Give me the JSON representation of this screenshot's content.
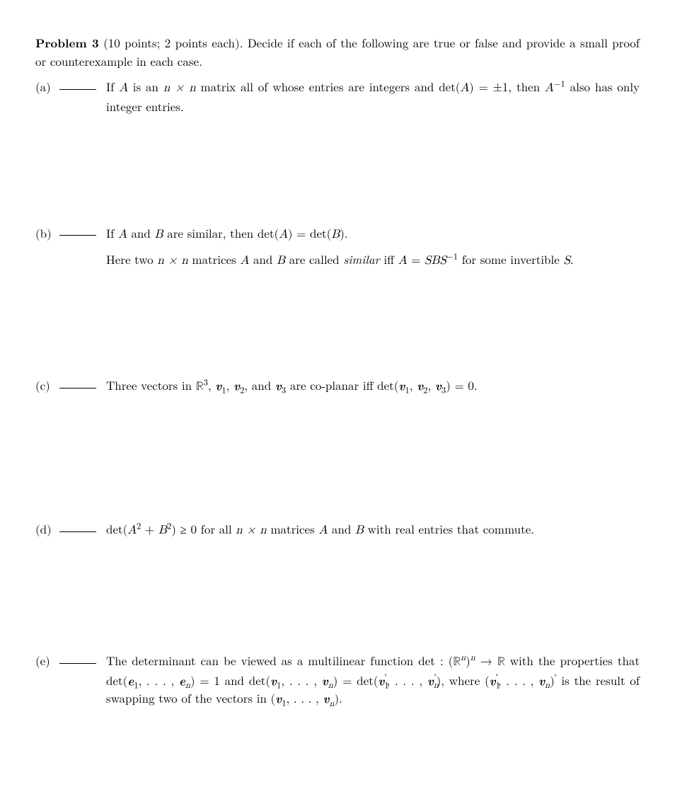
{
  "header": {
    "title": "Problem 3",
    "points": " (10 points; 2 points each).",
    "intro": " Decide if each of the following are true or false and provide a small proof or counterexample in each case."
  },
  "parts": {
    "a": {
      "label": "(a)",
      "pre1": "If ",
      "A": "A",
      "mid1": " is an ",
      "nxn": "n × n",
      "mid2": " matrix all of whose entries are integers and det(",
      "A2": "A",
      "mid3": ") = ±1, then ",
      "Ainv": "A",
      "invexp": "−1",
      "post": " also has only integer entries."
    },
    "b": {
      "label": "(b)",
      "p1_pre": "If ",
      "p1_A": "A",
      "p1_and": " and ",
      "p1_B": "B",
      "p1_mid": " are similar, then det(",
      "p1_A2": "A",
      "p1_mid2": ") = det(",
      "p1_B2": "B",
      "p1_end": ").",
      "p2_pre": "Here two ",
      "p2_nxn": "n × n",
      "p2_mid1": " matrices ",
      "p2_A": "A",
      "p2_and": " and ",
      "p2_B": "B",
      "p2_mid2": " are called ",
      "p2_sim": "similar",
      "p2_mid3": " iff ",
      "p2_A2": "A",
      "p2_eq": " = ",
      "p2_SBS": "SBS",
      "p2_inv": "−1",
      "p2_mid4": " for some invertible ",
      "p2_S": "S",
      "p2_end": "."
    },
    "c": {
      "label": "(c)",
      "pre": "Three vectors in ",
      "R": "ℝ",
      "exp3": "3",
      "mid1": ", ",
      "v1": "v",
      "s1": "1",
      "c1": ", ",
      "v2": "v",
      "s2": "2",
      "c2": ", and ",
      "v3": "v",
      "s3": "3",
      "mid2": " are co-planar iff det(",
      "dv1": "v",
      "ds1": "1",
      "dc1": ", ",
      "dv2": "v",
      "ds2": "2",
      "dc2": ", ",
      "dv3": "v",
      "ds3": "3",
      "end": ") = 0."
    },
    "d": {
      "label": "(d)",
      "pre": "det(",
      "A": "A",
      "sq1": "2",
      "plus": " + ",
      "B": "B",
      "sq2": "2",
      "mid1": ") ≥ 0 for all ",
      "nxn": "n × n",
      "mid2": " matrices ",
      "A2": "A",
      "and": " and ",
      "B2": "B",
      "end": " with real entries that commute."
    },
    "e": {
      "label": "(e)",
      "pre": "The determinant can be viewed as a multilinear function det : (",
      "R": "ℝ",
      "expn": "n",
      "paren": ")",
      "expn2": "n",
      "arrow": " → ",
      "R2": "ℝ",
      "mid1": " with the properties that det(",
      "e1": "e",
      "es1": "1",
      "dots1": ", . . . , ",
      "en": "e",
      "esn": "n",
      "mid2": ") = 1 and det(",
      "v1": "v",
      "vs1": "1",
      "dots2": ", . . . , ",
      "vn": "v",
      "vsn": "n",
      "mid3": ") = det(",
      "vp1": "v",
      "vps1p": "′",
      "vps1": "1",
      "dots3": ", . . . , ",
      "vpn": "v",
      "vpsnp": "′",
      "vpsn": "n",
      "mid4": "), where (",
      "wp1": "v",
      "wps1p": "′",
      "wps1": "1",
      "dots4": ", . . . , ",
      "wpn": "v",
      "wpsn": "n",
      "mid5": ")",
      "prime2": "′",
      "mid6": " is the result of swapping two of the vectors in (",
      "x1": "v",
      "xs1": "1",
      "dots5": ", . . . , ",
      "xn": "v",
      "xsn": "n",
      "end": ")."
    }
  }
}
